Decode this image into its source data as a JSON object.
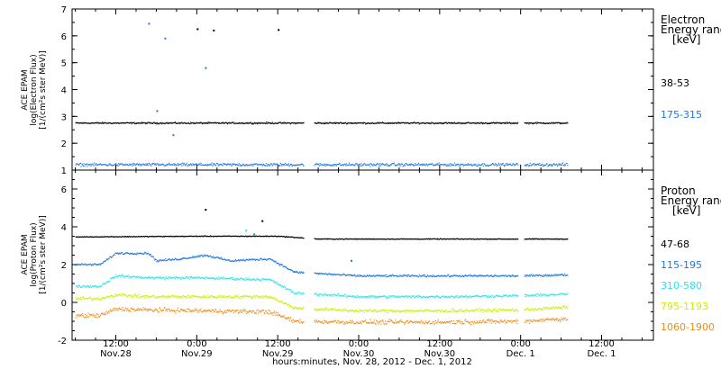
{
  "colors": {
    "black": "#000000",
    "blue": "#1e78dc",
    "cyan": "#28e6e6",
    "yellow": "#c8f000",
    "orange": "#f08c14"
  },
  "chart_data": [
    {
      "type": "scatter",
      "panel": "electron",
      "ylabel_lines": [
        "ACE EPAM",
        "log(Electron Flux)",
        "[1/(cm²s ster MeV)]"
      ],
      "ylim": [
        1,
        7
      ],
      "yticks": [
        1,
        2,
        3,
        4,
        5,
        6,
        7
      ],
      "legend_title": [
        "Electron",
        "Energy range",
        "[keV]"
      ],
      "legend_placement": "right",
      "series": [
        {
          "name": "38-53",
          "color_key": "black",
          "level": 2.75,
          "noise": 0.04,
          "spikes": [
            {
              "x": 0.0,
              "y": 6.25
            },
            {
              "x": 0.1,
              "y": 6.2
            },
            {
              "x": 0.5,
              "y": 6.22
            }
          ]
        },
        {
          "name": "175-315",
          "color_key": "blue",
          "level": 1.2,
          "noise": 0.08,
          "spikes": [
            {
              "x": -0.3,
              "y": 6.45
            },
            {
              "x": -0.2,
              "y": 5.9
            },
            {
              "x": 0.05,
              "y": 4.8
            },
            {
              "x": -0.25,
              "y": 3.2
            },
            {
              "x": -0.15,
              "y": 2.3
            }
          ]
        }
      ]
    },
    {
      "type": "scatter",
      "panel": "proton",
      "ylabel_lines": [
        "ACE EPAM",
        "log(Proton Flux)",
        "[1/(cm²s ster MeV)]"
      ],
      "ylim": [
        -2,
        7
      ],
      "yticks": [
        -2,
        0,
        2,
        4,
        6
      ],
      "legend_title": [
        "Proton",
        "Energy range",
        "[keV]"
      ],
      "legend_placement": "right",
      "series": [
        {
          "name": "47-68",
          "color_key": "black",
          "profile": [
            [
              -1.0,
              3.45
            ],
            [
              0.0,
              3.5
            ],
            [
              0.5,
              3.5
            ],
            [
              0.75,
              3.35
            ],
            [
              1.0,
              3.35
            ],
            [
              1.5,
              3.35
            ],
            [
              2.5,
              3.35
            ]
          ],
          "noise": 0.03,
          "spikes": [
            {
              "x": 0.05,
              "y": 4.9
            },
            {
              "x": 0.4,
              "y": 4.3
            }
          ]
        },
        {
          "name": "115-195",
          "color_key": "blue",
          "profile": [
            [
              -1.0,
              2.0
            ],
            [
              -0.6,
              2.0
            ],
            [
              -0.5,
              2.6
            ],
            [
              -0.3,
              2.6
            ],
            [
              -0.25,
              2.2
            ],
            [
              -0.1,
              2.3
            ],
            [
              0.05,
              2.5
            ],
            [
              0.2,
              2.2
            ],
            [
              0.45,
              2.3
            ],
            [
              0.6,
              1.6
            ],
            [
              1.0,
              1.4
            ],
            [
              1.5,
              1.4
            ],
            [
              2.0,
              1.4
            ],
            [
              2.5,
              1.5
            ]
          ],
          "noise": 0.08,
          "spikes": [
            {
              "x": 0.95,
              "y": 2.2
            },
            {
              "x": 0.35,
              "y": 3.6
            }
          ]
        },
        {
          "name": "310-580",
          "color_key": "cyan",
          "profile": [
            [
              -1.0,
              0.85
            ],
            [
              -0.6,
              0.85
            ],
            [
              -0.5,
              1.4
            ],
            [
              -0.3,
              1.3
            ],
            [
              0.0,
              1.3
            ],
            [
              0.45,
              1.2
            ],
            [
              0.6,
              0.5
            ],
            [
              1.0,
              0.3
            ],
            [
              1.5,
              0.3
            ],
            [
              2.0,
              0.35
            ],
            [
              2.5,
              0.5
            ]
          ],
          "noise": 0.1,
          "spikes": [
            {
              "x": 0.3,
              "y": 3.8
            }
          ]
        },
        {
          "name": "795-1193",
          "color_key": "yellow",
          "profile": [
            [
              -1.0,
              0.2
            ],
            [
              -0.6,
              0.2
            ],
            [
              -0.5,
              0.4
            ],
            [
              -0.3,
              0.3
            ],
            [
              0.45,
              0.3
            ],
            [
              0.6,
              -0.3
            ],
            [
              1.0,
              -0.45
            ],
            [
              1.5,
              -0.45
            ],
            [
              2.0,
              -0.4
            ],
            [
              2.5,
              -0.15
            ]
          ],
          "noise": 0.12,
          "spikes": []
        },
        {
          "name": "1060-1900",
          "color_key": "orange",
          "profile": [
            [
              -1.0,
              -0.7
            ],
            [
              -0.6,
              -0.7
            ],
            [
              -0.5,
              -0.35
            ],
            [
              -0.3,
              -0.4
            ],
            [
              0.45,
              -0.5
            ],
            [
              0.6,
              -1.0
            ],
            [
              1.0,
              -1.05
            ],
            [
              1.5,
              -1.05
            ],
            [
              2.0,
              -1.0
            ],
            [
              2.5,
              -0.75
            ]
          ],
          "noise": 0.17,
          "spikes": []
        }
      ]
    }
  ],
  "x_axis": {
    "tick_labels": [
      {
        "day": -0.5,
        "time": "12:00",
        "date": "Nov.28"
      },
      {
        "day": 0.0,
        "time": "0:00",
        "date": "Nov.29"
      },
      {
        "day": 0.5,
        "time": "12:00",
        "date": "Nov.29"
      },
      {
        "day": 1.0,
        "time": "0:00",
        "date": "Nov.30"
      },
      {
        "day": 1.5,
        "time": "12:00",
        "date": "Nov.30"
      },
      {
        "day": 2.0,
        "time": "0:00",
        "date": "Dec. 1"
      },
      {
        "day": 2.5,
        "time": "12:00",
        "date": "Dec. 1"
      }
    ],
    "xlabel": "hours:minutes, Nov. 28, 2012 - Dec. 1, 2012",
    "data_gaps": [
      [
        0.66,
        0.72
      ],
      [
        1.98,
        2.02
      ]
    ],
    "data_end": 2.29
  }
}
